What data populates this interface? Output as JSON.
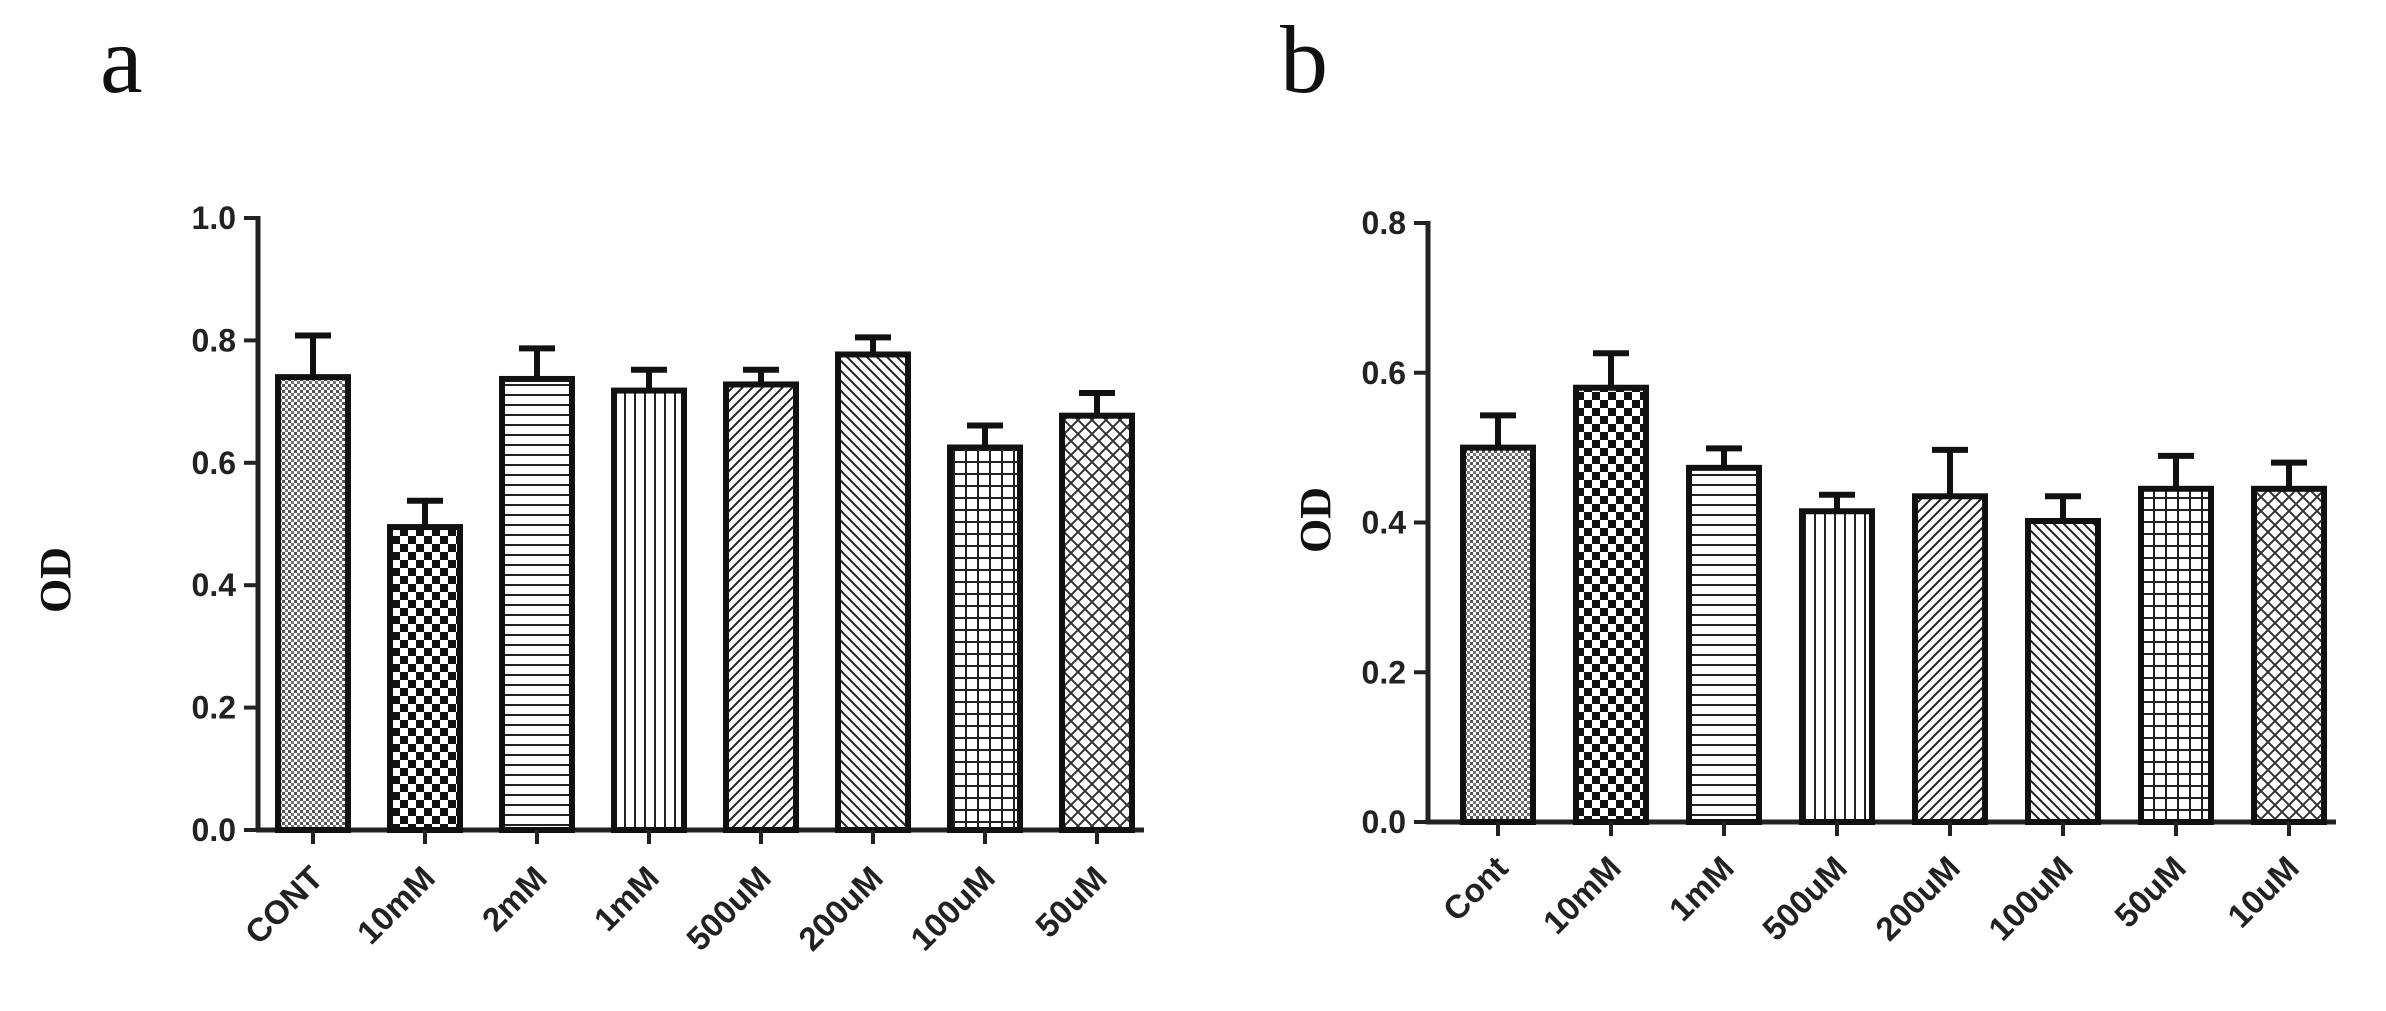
{
  "chart_data": [
    {
      "type": "bar",
      "panel": "a",
      "title": "",
      "xlabel": "",
      "ylabel": "OD",
      "ylim": [
        0,
        1.0
      ],
      "yticks": [
        0.0,
        0.2,
        0.4,
        0.6,
        0.8,
        1.0
      ],
      "ytick_labels": [
        "0.0",
        "0.2",
        "0.4",
        "0.6",
        "0.8",
        "1.0"
      ],
      "categories": [
        "CONT",
        "10mM",
        "2mM",
        "1mM",
        "500uM",
        "200uM",
        "100uM",
        "50uM"
      ],
      "values": [
        0.74,
        0.495,
        0.737,
        0.718,
        0.728,
        0.777,
        0.625,
        0.677
      ],
      "errors": [
        0.068,
        0.043,
        0.05,
        0.034,
        0.024,
        0.028,
        0.036,
        0.037
      ],
      "patterns": [
        "fine-dots",
        "checker",
        "horizontal",
        "vertical",
        "diagonal-right",
        "diagonal-left",
        "grid",
        "crosshatch"
      ]
    },
    {
      "type": "bar",
      "panel": "b",
      "title": "",
      "xlabel": "",
      "ylabel": "OD",
      "ylim": [
        0,
        0.8
      ],
      "yticks": [
        0.0,
        0.2,
        0.4,
        0.6,
        0.8
      ],
      "ytick_labels": [
        "0.0",
        "0.2",
        "0.4",
        "0.6",
        "0.8"
      ],
      "categories": [
        "Cont",
        "10mM",
        "1mM",
        "500uM",
        "200uM",
        "100uM",
        "50uM",
        "10uM"
      ],
      "values": [
        0.5,
        0.58,
        0.473,
        0.415,
        0.435,
        0.402,
        0.445,
        0.445
      ],
      "errors": [
        0.043,
        0.046,
        0.026,
        0.022,
        0.062,
        0.033,
        0.044,
        0.035
      ],
      "patterns": [
        "fine-dots",
        "checker",
        "horizontal",
        "vertical",
        "diagonal-right",
        "diagonal-left",
        "grid",
        "crosshatch"
      ]
    }
  ]
}
